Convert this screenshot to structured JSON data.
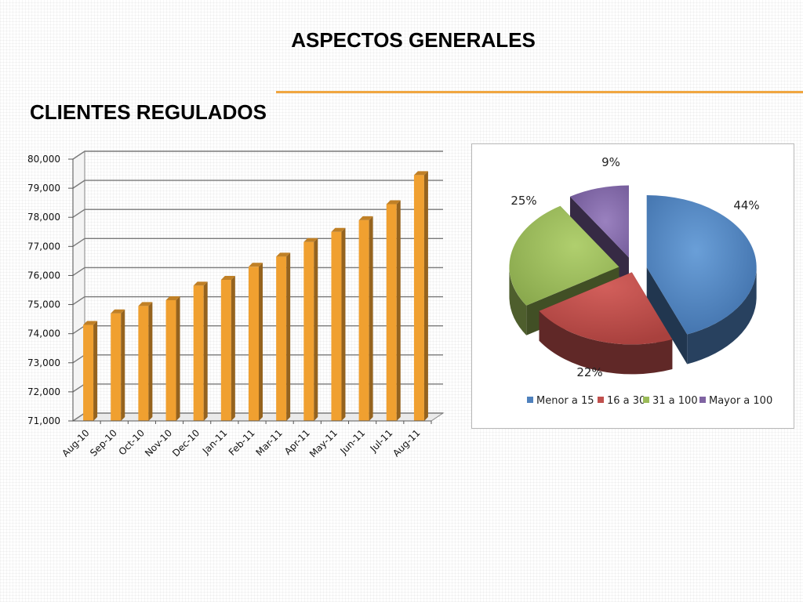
{
  "header": {
    "title": "ASPECTOS GENERALES",
    "rule_color": "#f0a640"
  },
  "section": {
    "title": "CLIENTES REGULADOS"
  },
  "chart_data": [
    {
      "type": "bar",
      "title": "",
      "xlabel": "",
      "ylabel": "",
      "categories": [
        "Aug-10",
        "Sep-10",
        "Oct-10",
        "Nov-10",
        "Dec-10",
        "Jan-11",
        "Feb-11",
        "Mar-11",
        "Apr-11",
        "May-11",
        "Jun-11",
        "Jul-11",
        "Aug-11"
      ],
      "values": [
        74300,
        74700,
        74950,
        75150,
        75650,
        75850,
        76300,
        76650,
        77150,
        77500,
        77900,
        78450,
        79450
      ],
      "ylim": [
        71000,
        80000
      ],
      "ytick_labels": [
        "71,000",
        "72,000",
        "73,000",
        "74,000",
        "75,000",
        "76,000",
        "77,000",
        "78,000",
        "79,000",
        "80,000"
      ],
      "grid": true,
      "color": "#f0a030",
      "style": "3d"
    },
    {
      "type": "pie",
      "style": "3d-exploded",
      "legend_position": "bottom",
      "slices": [
        {
          "label": "Menor a 15",
          "value": 44,
          "display": "44%",
          "color": "#4f81bd"
        },
        {
          "label": "16 a 30",
          "value": 22,
          "display": "22%",
          "color": "#c0504d"
        },
        {
          "label": "31 a 100",
          "value": 25,
          "display": "25%",
          "color": "#9bbb59"
        },
        {
          "label": "Mayor a 100",
          "value": 9,
          "display": "9%",
          "color": "#8064a2"
        }
      ]
    }
  ]
}
